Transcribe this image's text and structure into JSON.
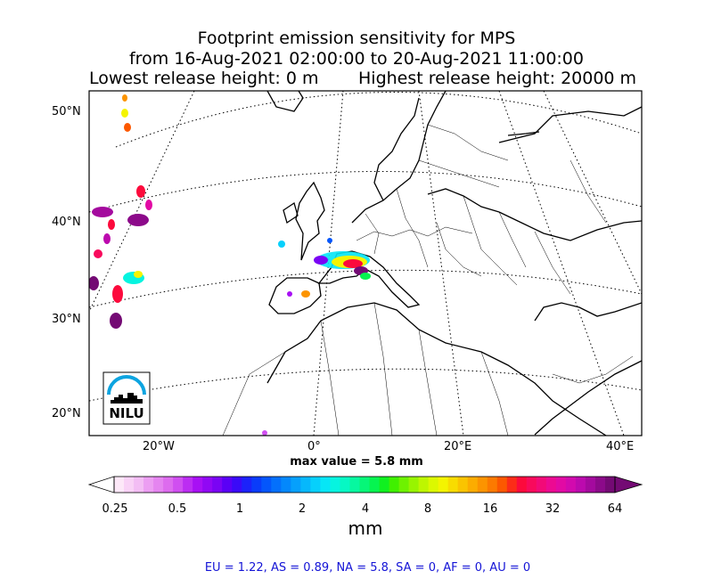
{
  "title": {
    "line1": "Footprint emission sensitivity for MPS",
    "line2": "from 16-Aug-2021 02:00:00 to 20-Aug-2021 11:00:00",
    "lowest": "Lowest release height: 0 m",
    "highest": "Highest release height: 20000 m"
  },
  "map": {
    "lat_labels": [
      "50°N",
      "40°N",
      "30°N",
      "20°N"
    ],
    "lon_labels": [
      "20°W",
      "0°",
      "20°E",
      "40°E"
    ],
    "logo_text": "NILU",
    "colors": {
      "land_border": "#000000",
      "logo_blue": "#0da4e0"
    }
  },
  "max_value": "max value = 5.8 mm",
  "colorbar": {
    "ticks": [
      "0.25",
      "0.5",
      "1",
      "2",
      "4",
      "8",
      "16",
      "32",
      "64"
    ],
    "unit": "mm",
    "colors": [
      "#fde8f8",
      "#f9d2f6",
      "#f3bdf4",
      "#ec9ef2",
      "#e585f0",
      "#dd6cee",
      "#d04ff0",
      "#bc2df2",
      "#a810f4",
      "#9108f4",
      "#7a04f4",
      "#5a00f6",
      "#3a0af8",
      "#1c22fa",
      "#0a3cfa",
      "#0456fc",
      "#0470fc",
      "#0488fc",
      "#06a0fc",
      "#06b8fc",
      "#06d0fc",
      "#06e6f6",
      "#06f4e0",
      "#06f8c4",
      "#06f8a0",
      "#06f678",
      "#06f450",
      "#10f020",
      "#40f000",
      "#6ef200",
      "#98f400",
      "#bef600",
      "#dcf800",
      "#f4f400",
      "#f8dc00",
      "#fac400",
      "#fcac00",
      "#fc9400",
      "#fc7a00",
      "#fc5800",
      "#fc2c18",
      "#fc0a3c",
      "#f80a5c",
      "#f20a78",
      "#ec0a92",
      "#e20aa4",
      "#d20aae",
      "#bc0aae",
      "#a40a9e",
      "#8c0a8a",
      "#740a74"
    ]
  },
  "stats": "EU = 1.22,  AS = 0.89,  NA = 5.8,  SA = 0,  AF = 0,  AU = 0"
}
